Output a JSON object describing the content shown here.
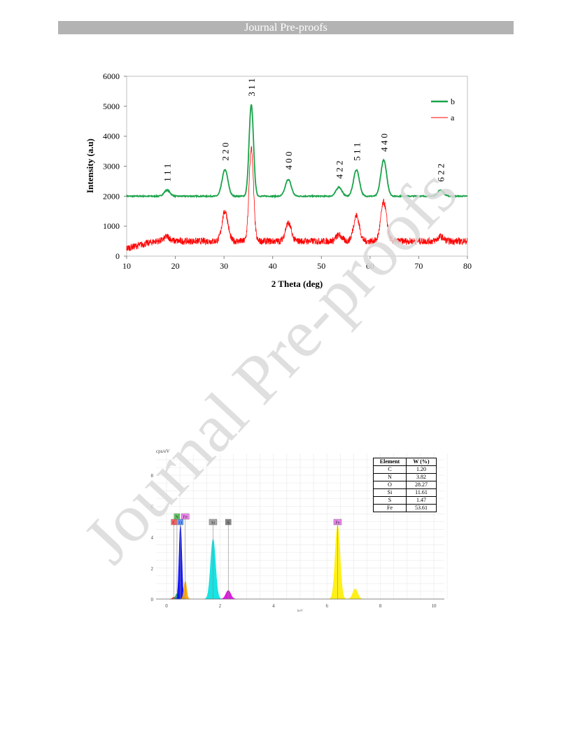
{
  "header": {
    "title": "Journal Pre-proofs"
  },
  "watermark": {
    "text": "Journal Pre-proofs",
    "color": "#d9d9d9"
  },
  "chart_data": [
    {
      "type": "line",
      "xlabel": "2 Theta (deg)",
      "ylabel": "Intensity (a.u)",
      "xlim": [
        10,
        80
      ],
      "ylim": [
        0,
        6000
      ],
      "x_ticks": [
        10,
        20,
        30,
        40,
        50,
        60,
        70,
        80
      ],
      "y_ticks": [
        0,
        1000,
        2000,
        3000,
        4000,
        5000,
        6000
      ],
      "legend_position": "top-right",
      "series": [
        {
          "name": "b",
          "color": "#1aa34a",
          "baseline": 2000,
          "peaks": [
            [
              18.3,
              2200
            ],
            [
              30.2,
              2880
            ],
            [
              35.6,
              5050
            ],
            [
              43.2,
              2560
            ],
            [
              53.6,
              2300
            ],
            [
              57.2,
              2880
            ],
            [
              62.8,
              3200
            ],
            [
              74.5,
              2200
            ]
          ]
        },
        {
          "name": "a",
          "color": "#ff0000",
          "baseline": 500,
          "peaks": [
            [
              18.3,
              650
            ],
            [
              30.2,
              1500
            ],
            [
              35.6,
              3600
            ],
            [
              43.2,
              1100
            ],
            [
              53.6,
              700
            ],
            [
              57.2,
              1350
            ],
            [
              62.8,
              1800
            ],
            [
              74.5,
              650
            ]
          ]
        }
      ],
      "annotations": [
        {
          "label": "1 1 1",
          "x": 18.3,
          "y": 2200
        },
        {
          "label": "2 2 0",
          "x": 30.2,
          "y": 2900
        },
        {
          "label": "3 1 1",
          "x": 35.6,
          "y": 5050
        },
        {
          "label": "4 0 0",
          "x": 43.2,
          "y": 2600
        },
        {
          "label": "4 2 2",
          "x": 53.6,
          "y": 2300
        },
        {
          "label": "5 1 1",
          "x": 57.2,
          "y": 2900
        },
        {
          "label": "4 4 0",
          "x": 62.8,
          "y": 3200
        },
        {
          "label": "6 2 2",
          "x": 74.5,
          "y": 2200
        }
      ]
    },
    {
      "type": "area",
      "ylabel": "cps/eV",
      "xlabel": "keV",
      "xlim": [
        0,
        10
      ],
      "ylim": [
        0,
        9
      ],
      "x_ticks": [
        0,
        2,
        4,
        6,
        8,
        10
      ],
      "y_ticks": [
        0,
        2,
        4,
        6,
        8
      ],
      "grid": true,
      "peaks": [
        {
          "element": "C",
          "x": 0.28,
          "y": 0.12,
          "color": "#ff0000"
        },
        {
          "element": "N",
          "x": 0.39,
          "y": 0.35,
          "color": "#00b050"
        },
        {
          "element": "O",
          "x": 0.52,
          "y": 4.75,
          "color": "#0000ff"
        },
        {
          "element": "Fe",
          "x": 0.7,
          "y": 1.15,
          "color": "#ffa500"
        },
        {
          "element": "Si",
          "x": 1.74,
          "y": 3.85,
          "color": "#00e0e0"
        },
        {
          "element": "S",
          "x": 2.31,
          "y": 0.55,
          "color": "#e000e0"
        },
        {
          "element": "Fe",
          "x": 6.4,
          "y": 4.75,
          "color": "#ffee00"
        },
        {
          "element": "Fe",
          "x": 7.06,
          "y": 0.65,
          "color": "#ffee00"
        }
      ],
      "element_markers": [
        {
          "label": "C",
          "x": 0.28,
          "row": 1,
          "color": "#ff6666"
        },
        {
          "label": "N",
          "x": 0.39,
          "row": 0,
          "color": "#66cc66"
        },
        {
          "label": "O",
          "x": 0.52,
          "row": 1,
          "color": "#6699ff"
        },
        {
          "label": "Fe",
          "x": 0.7,
          "row": 0,
          "color": "#ee88ee"
        },
        {
          "label": "Si",
          "x": 1.74,
          "row": 1,
          "color": "#aaaaaa"
        },
        {
          "label": "S",
          "x": 2.31,
          "row": 1,
          "color": "#888888"
        },
        {
          "label": "Fe",
          "x": 6.4,
          "row": 1,
          "color": "#ee88ee"
        }
      ],
      "table": {
        "headers": [
          "Element",
          "W (%)"
        ],
        "rows": [
          [
            "C",
            "1.20"
          ],
          [
            "N",
            "3.82"
          ],
          [
            "O",
            "28.27"
          ],
          [
            "Si",
            "11.61"
          ],
          [
            "S",
            "1.47"
          ],
          [
            "Fe",
            "53.61"
          ]
        ]
      }
    }
  ]
}
